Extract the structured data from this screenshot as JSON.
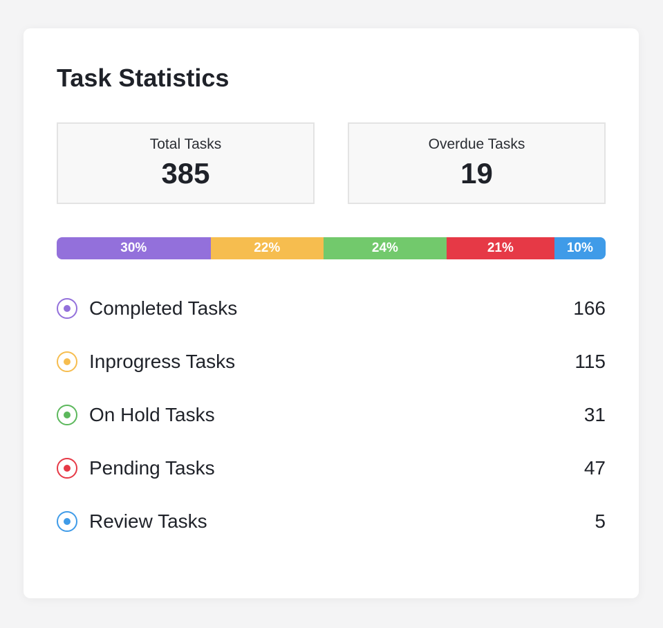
{
  "card": {
    "title": "Task Statistics"
  },
  "stats": [
    {
      "label": "Total Tasks",
      "value": "385"
    },
    {
      "label": "Overdue Tasks",
      "value": "19"
    }
  ],
  "progress": [
    {
      "label": "30%",
      "percent": 30,
      "color": "#9370db"
    },
    {
      "label": "22%",
      "percent": 22,
      "color": "#f6bd4f"
    },
    {
      "label": "24%",
      "percent": 24,
      "color": "#72c96c"
    },
    {
      "label": "21%",
      "percent": 21,
      "color": "#e63946"
    },
    {
      "label": "10%",
      "percent": 10,
      "color": "#3f9be8"
    }
  ],
  "legend": [
    {
      "label": "Completed Tasks",
      "count": "166",
      "color": "#9370db",
      "icon": "purple-circle-dot-icon"
    },
    {
      "label": "Inprogress Tasks",
      "count": "115",
      "color": "#f6bd4f",
      "icon": "yellow-circle-dot-icon"
    },
    {
      "label": "On Hold Tasks",
      "count": "31",
      "color": "#5cb85c",
      "icon": "green-circle-dot-icon"
    },
    {
      "label": "Pending Tasks",
      "count": "47",
      "color": "#e63946",
      "icon": "red-circle-dot-icon"
    },
    {
      "label": "Review Tasks",
      "count": "5",
      "color": "#3f9be8",
      "icon": "blue-circle-dot-icon"
    }
  ]
}
